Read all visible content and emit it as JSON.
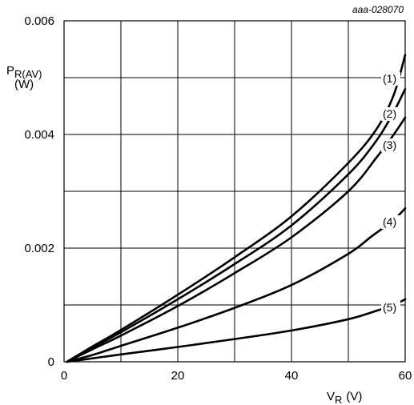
{
  "reference_code": "aaa-028070",
  "chart_data": {
    "type": "line",
    "ylabel": {
      "main": "P",
      "sub": "R(AV)",
      "unit": "(W)"
    },
    "xlabel": {
      "main": "V",
      "sub": "R",
      "unit": "(V)"
    },
    "xlim": [
      0,
      60
    ],
    "ylim": [
      0,
      0.006
    ],
    "x_ticks": [
      {
        "value": 0,
        "label": "0"
      },
      {
        "value": 20,
        "label": "20"
      },
      {
        "value": 40,
        "label": "40"
      },
      {
        "value": 60,
        "label": "60"
      }
    ],
    "y_ticks": [
      {
        "value": 0,
        "label": "0"
      },
      {
        "value": 0.002,
        "label": "0.002"
      },
      {
        "value": 0.004,
        "label": "0.004"
      },
      {
        "value": 0.006,
        "label": "0.006"
      }
    ],
    "x_grid": [
      10,
      20,
      30,
      40,
      50
    ],
    "y_grid": [
      0.001,
      0.002,
      0.003,
      0.004,
      0.005
    ],
    "grid": true,
    "series": [
      {
        "name": "(1)",
        "points": [
          [
            0.5,
            0
          ],
          [
            5,
            0.00027
          ],
          [
            10,
            0.00056
          ],
          [
            20,
            0.00118
          ],
          [
            30,
            0.00184
          ],
          [
            40,
            0.00256
          ],
          [
            50,
            0.0035
          ],
          [
            55,
            0.0041
          ],
          [
            58,
            0.0047
          ],
          [
            60,
            0.0054
          ]
        ]
      },
      {
        "name": "(2)",
        "points": [
          [
            0.5,
            0
          ],
          [
            5,
            0.00025
          ],
          [
            10,
            0.00052
          ],
          [
            20,
            0.0011
          ],
          [
            30,
            0.00172
          ],
          [
            40,
            0.0024
          ],
          [
            50,
            0.0033
          ],
          [
            55,
            0.0039
          ],
          [
            58,
            0.0044
          ],
          [
            60,
            0.0048
          ]
        ]
      },
      {
        "name": "(3)",
        "points": [
          [
            0.5,
            0
          ],
          [
            5,
            0.00022
          ],
          [
            10,
            0.00046
          ],
          [
            20,
            0.00098
          ],
          [
            30,
            0.00156
          ],
          [
            40,
            0.00219
          ],
          [
            50,
            0.003
          ],
          [
            55,
            0.0036
          ],
          [
            58,
            0.004
          ],
          [
            60,
            0.0043
          ]
        ]
      },
      {
        "name": "(4)",
        "points": [
          [
            0.5,
            0
          ],
          [
            5,
            0.00012
          ],
          [
            10,
            0.00028
          ],
          [
            20,
            0.0006
          ],
          [
            30,
            0.00095
          ],
          [
            40,
            0.00135
          ],
          [
            50,
            0.0019
          ],
          [
            54,
            0.0022
          ],
          [
            58,
            0.0025
          ],
          [
            60,
            0.0027
          ]
        ]
      },
      {
        "name": "(5)",
        "points": [
          [
            0.5,
            0
          ],
          [
            5,
            6e-05
          ],
          [
            10,
            0.00013
          ],
          [
            20,
            0.00026
          ],
          [
            30,
            0.0004
          ],
          [
            40,
            0.00055
          ],
          [
            50,
            0.00075
          ],
          [
            55,
            0.0009
          ],
          [
            58,
            0.001
          ],
          [
            60,
            0.0011
          ]
        ]
      }
    ]
  }
}
